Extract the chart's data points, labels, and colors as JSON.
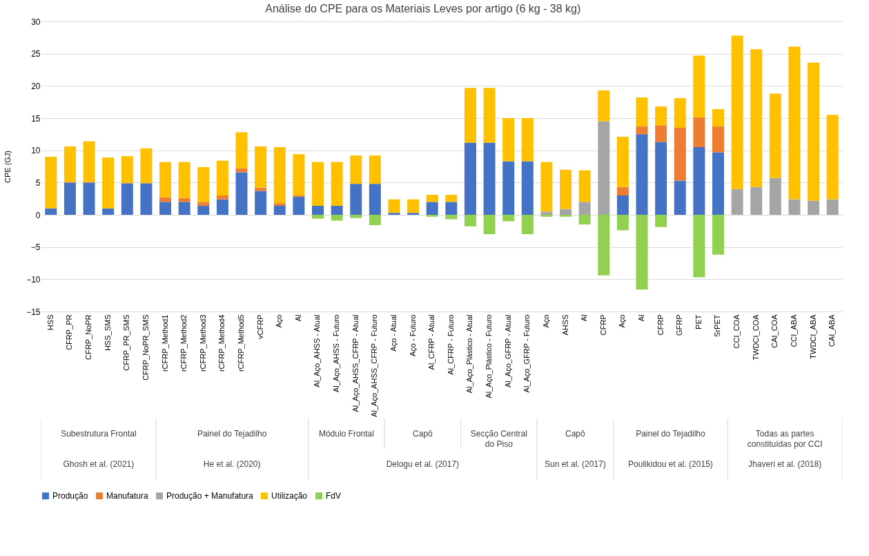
{
  "chart_data": {
    "type": "bar",
    "stacked": true,
    "title": "Análise do CPE para os Materiais Leves por artigo (6 kg - 38 kg)",
    "ylabel": "CPE (GJ)",
    "categories": [
      "HSS",
      "CFRP_PR",
      "CFRP_NoPR",
      "HSS_SMS",
      "CFRP_PR_SMS",
      "CFRP_NoPR_SMS",
      "rCFRP_Method1",
      "rCFRP_Method2",
      "rCFRP_Method3",
      "rCFRP_Method4",
      "rCFRP_Method5",
      "vCFRP",
      "Aço",
      "Al",
      "Al_Aço_AHSS - Atual",
      "Al_Aço_AHSS - Futuro",
      "Al_Aço_AHSS_CFRP - Atual",
      "Al_Aço_AHSS_CFRP - Futuro",
      "Aço - Atual",
      "Aço - Futuro",
      "Al_CFRP - Atual",
      "Al_CFRP - Futuro",
      "Al_Aço_Plástico - Atual",
      "Al_Aço_Plástico - Futuro",
      "Al_Aço_GFRP - Atual",
      "Al_Aço_GFRP - Futuro",
      "Aço",
      "AHSS",
      "Al",
      "CFRP",
      "Aço",
      "Al",
      "CFRP",
      "GFRP",
      "PET",
      "SrPET",
      "CCI_COA",
      "TWDCI_COA",
      "CAI_COA",
      "CCI_ABA",
      "TWDCI_ABA",
      "CAI_ABA"
    ],
    "series": [
      {
        "name": "Produção",
        "color": "#4472c4",
        "values": [
          1.0,
          5.0,
          5.0,
          1.0,
          4.9,
          4.9,
          2.0,
          2.0,
          1.4,
          2.4,
          6.6,
          3.7,
          1.4,
          2.8,
          1.4,
          1.4,
          4.8,
          4.8,
          0.3,
          0.3,
          2.0,
          2.0,
          11.2,
          11.2,
          8.3,
          8.3,
          null,
          null,
          null,
          null,
          3.0,
          12.5,
          11.3,
          5.3,
          10.5,
          9.7,
          null,
          null,
          null,
          null,
          null,
          null
        ]
      },
      {
        "name": "Manufatura",
        "color": "#ed7d31",
        "values": [
          null,
          0.1,
          0.1,
          null,
          null,
          null,
          0.7,
          0.6,
          0.6,
          0.6,
          0.6,
          0.5,
          0.4,
          0.2,
          null,
          null,
          null,
          null,
          null,
          null,
          null,
          null,
          null,
          null,
          null,
          null,
          null,
          null,
          null,
          null,
          1.3,
          1.2,
          2.6,
          8.2,
          4.6,
          4.0,
          null,
          null,
          null,
          null,
          null,
          null
        ]
      },
      {
        "name": "Produção + Manufatura",
        "color": "#a5a5a5",
        "values": [
          null,
          null,
          null,
          null,
          null,
          null,
          null,
          null,
          null,
          null,
          null,
          null,
          null,
          null,
          null,
          null,
          null,
          null,
          null,
          null,
          null,
          null,
          null,
          null,
          null,
          null,
          0.5,
          0.9,
          2.0,
          14.5,
          null,
          null,
          null,
          null,
          null,
          null,
          4.0,
          4.3,
          5.7,
          2.4,
          2.2,
          2.4
        ]
      },
      {
        "name": "Utilização",
        "color": "#ffc000",
        "values": [
          8.0,
          5.5,
          6.3,
          7.9,
          4.2,
          5.4,
          5.5,
          5.6,
          5.4,
          5.4,
          5.6,
          6.4,
          8.7,
          6.4,
          6.8,
          6.8,
          4.4,
          4.4,
          2.1,
          2.1,
          1.1,
          1.1,
          8.5,
          8.5,
          6.7,
          6.7,
          7.7,
          6.1,
          4.9,
          4.8,
          7.8,
          4.5,
          2.9,
          4.6,
          9.6,
          2.7,
          23.8,
          21.4,
          13.1,
          23.7,
          21.4,
          13.1
        ]
      },
      {
        "name": "FdV",
        "color": "#92d050",
        "values": [
          null,
          null,
          null,
          null,
          null,
          null,
          null,
          null,
          null,
          null,
          null,
          null,
          null,
          null,
          -0.6,
          -0.9,
          -0.5,
          -1.6,
          null,
          null,
          -0.3,
          -0.7,
          -1.8,
          -3.0,
          -1.0,
          -3.0,
          -0.3,
          -0.3,
          -1.5,
          -9.4,
          -2.4,
          -11.6,
          -1.9,
          null,
          -9.7,
          -6.2,
          null,
          null,
          null,
          null,
          null,
          null
        ]
      }
    ],
    "ylim": [
      -15,
      30
    ],
    "yticks": [
      -15,
      -10,
      -5,
      0,
      5,
      10,
      15,
      20,
      25,
      30
    ],
    "grid": "y",
    "legend": "bottom",
    "annotations": [
      "Subestrutura Frontal",
      "Painel do Tejadilho",
      "Módulo Frontal",
      "Capô",
      "Secção Central do Piso",
      "Capô",
      "Painel do Tejadilho",
      "Todas as partes constituídas por CCI",
      "Ghosh et al. (2021)",
      "He et al. (2020)",
      "Delogu et al. (2017)",
      "Sun et al. (2017)",
      "Poulikidou et al. (2015)",
      "Jhaveri et al. (2018)"
    ]
  }
}
